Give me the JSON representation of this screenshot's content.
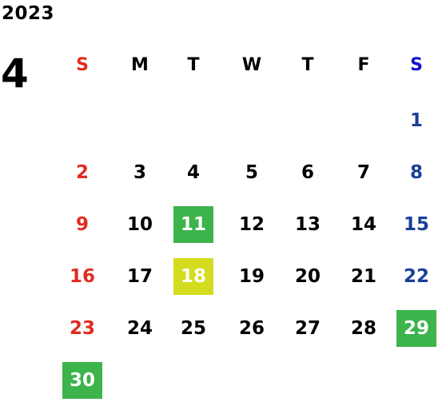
{
  "calendar": {
    "year": "2023",
    "month": "4",
    "weekdays": [
      "S",
      "M",
      "T",
      "W",
      "T",
      "F",
      "S"
    ],
    "weeks": [
      [
        "",
        "",
        "",
        "",
        "",
        "",
        "1"
      ],
      [
        "2",
        "3",
        "4",
        "5",
        "6",
        "7",
        "8"
      ],
      [
        "9",
        "10",
        "11",
        "12",
        "13",
        "14",
        "15"
      ],
      [
        "16",
        "17",
        "18",
        "19",
        "20",
        "21",
        "22"
      ],
      [
        "23",
        "24",
        "25",
        "26",
        "27",
        "28",
        "29"
      ],
      [
        "30",
        "",
        "",
        "",
        "",
        "",
        ""
      ]
    ],
    "highlighted_days": [
      {
        "day": "11",
        "color": "#3cb44b"
      },
      {
        "day": "18",
        "color": "#d4dc1f"
      },
      {
        "day": "29",
        "color": "#3cb44b"
      },
      {
        "day": "30",
        "color": "#3cb44b"
      }
    ]
  },
  "colors": {
    "sunday": "#e02b20",
    "saturday": "#1a3f99",
    "saturday_header": "#1111cc",
    "highlight_green": "#3cb44b",
    "highlight_yellow": "#d4dc1f"
  }
}
